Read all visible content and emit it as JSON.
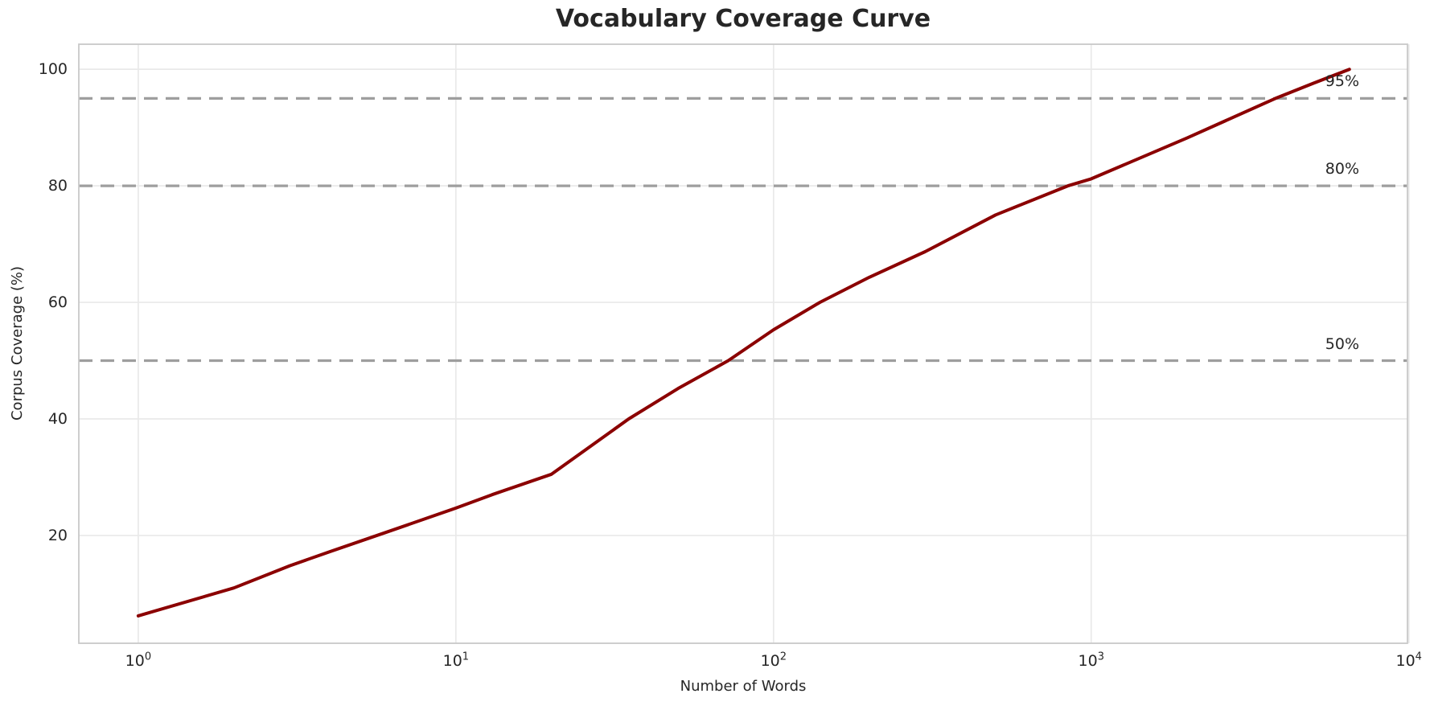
{
  "chart_data": {
    "type": "line",
    "title": "Vocabulary Coverage Curve",
    "xlabel": "Number of Words",
    "ylabel": "Corpus Coverage (%)",
    "x_scale": "log",
    "xlim": [
      0.65,
      9900
    ],
    "ylim": [
      1.5,
      104.3
    ],
    "grid": true,
    "legend_position": "none",
    "x_ticks": [
      {
        "value": 1,
        "base": "10",
        "exponent": "0"
      },
      {
        "value": 10,
        "base": "10",
        "exponent": "1"
      },
      {
        "value": 100,
        "base": "10",
        "exponent": "2"
      },
      {
        "value": 1000,
        "base": "10",
        "exponent": "3"
      },
      {
        "value": 10000,
        "base": "10",
        "exponent": "4"
      }
    ],
    "y_ticks": [
      {
        "value": 20,
        "label": "20"
      },
      {
        "value": 40,
        "label": "40"
      },
      {
        "value": 60,
        "label": "60"
      },
      {
        "value": 80,
        "label": "80"
      },
      {
        "value": 100,
        "label": "100"
      }
    ],
    "series": [
      {
        "name": "corpus-coverage-curve",
        "color": "#8B0000",
        "points": [
          [
            1,
            6.2
          ],
          [
            2,
            11.0
          ],
          [
            3,
            14.8
          ],
          [
            4,
            17.2
          ],
          [
            6,
            20.5
          ],
          [
            10,
            24.7
          ],
          [
            13,
            27.0
          ],
          [
            20,
            30.5
          ],
          [
            35,
            40.0
          ],
          [
            50,
            45.2
          ],
          [
            72,
            50.0
          ],
          [
            100,
            55.3
          ],
          [
            140,
            60.0
          ],
          [
            200,
            64.3
          ],
          [
            300,
            68.7
          ],
          [
            500,
            75.0
          ],
          [
            845,
            80.0
          ],
          [
            1000,
            81.2
          ],
          [
            2000,
            88.2
          ],
          [
            3800,
            95.0
          ],
          [
            5000,
            97.6
          ],
          [
            6500,
            100.0
          ]
        ]
      }
    ],
    "thresholds": [
      {
        "value": 50,
        "label": "50%"
      },
      {
        "value": 80,
        "label": "80%"
      },
      {
        "value": 95,
        "label": "95%"
      }
    ],
    "colors": {
      "curve": "#8B0000",
      "threshold_line": "#9E9E9E",
      "gridline": "#E9E9E9",
      "spine": "#C9C9C9",
      "text": "#262626",
      "background": "#FFFFFF"
    }
  }
}
